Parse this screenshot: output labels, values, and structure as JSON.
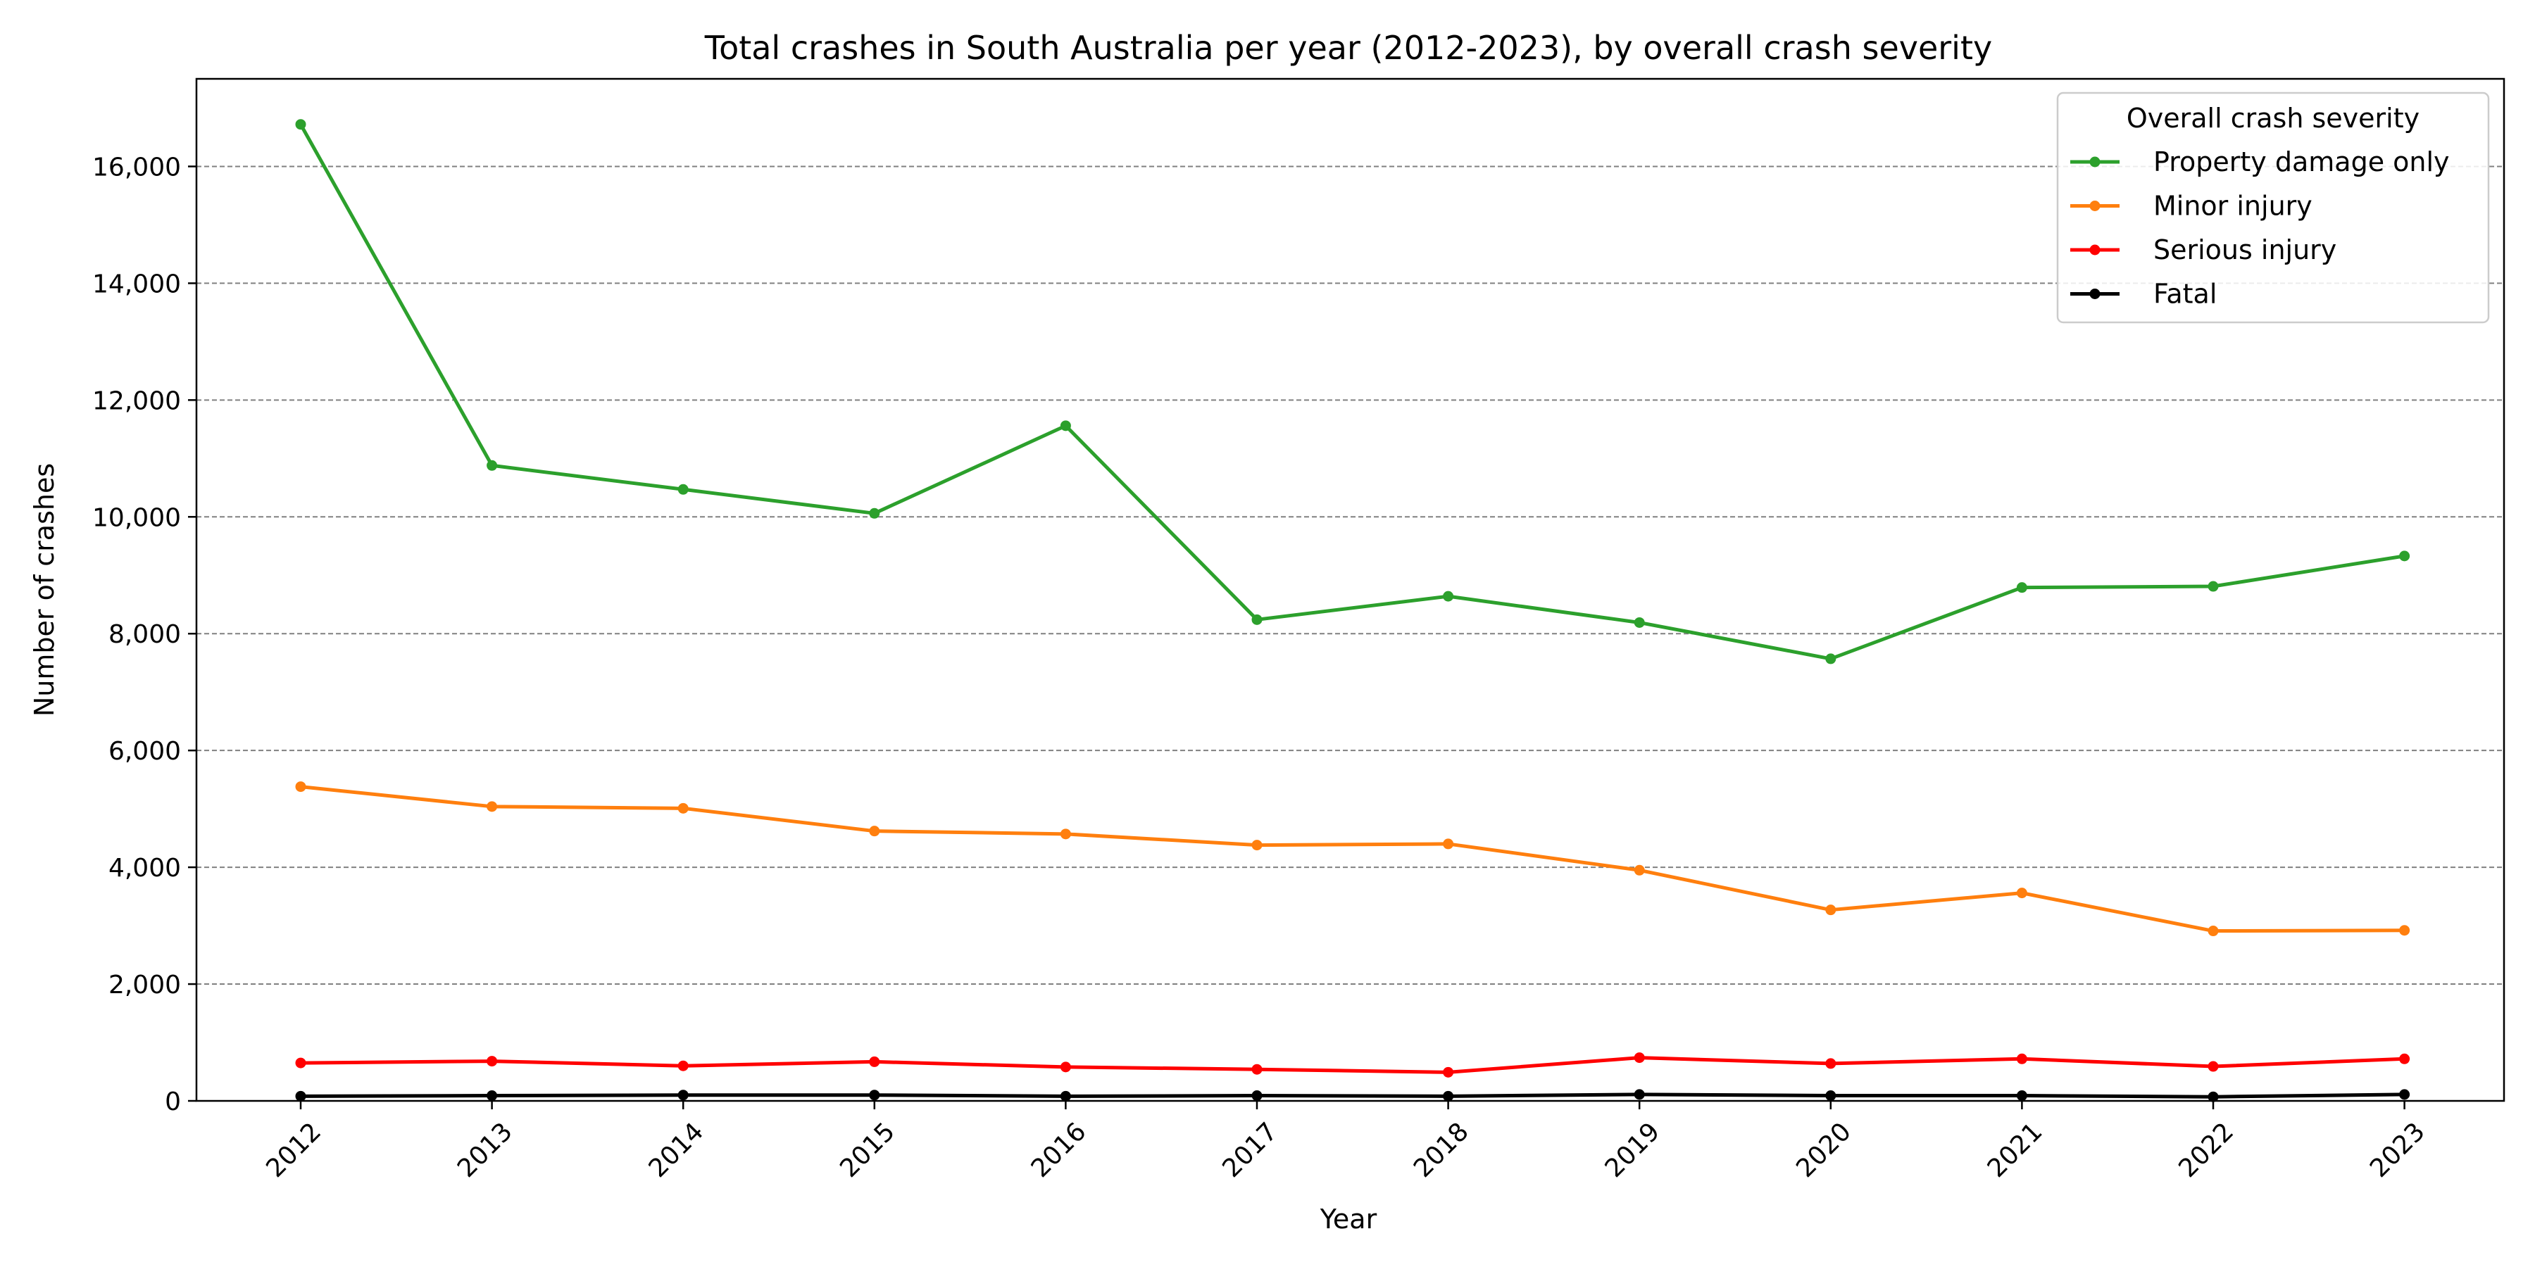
{
  "chart_data": {
    "type": "line",
    "title": "Total crashes in South Australia per year (2012-2023), by overall crash severity",
    "xlabel": "Year",
    "ylabel": "Number of crashes",
    "categories": [
      "2012",
      "2013",
      "2014",
      "2015",
      "2016",
      "2017",
      "2018",
      "2019",
      "2020",
      "2021",
      "2022",
      "2023"
    ],
    "ylim": [
      0,
      17500
    ],
    "yticks": [
      0,
      2000,
      4000,
      6000,
      8000,
      10000,
      12000,
      14000,
      16000
    ],
    "ytick_labels": [
      "0",
      "2,000",
      "4,000",
      "6,000",
      "8,000",
      "10,000",
      "12,000",
      "14,000",
      "16,000"
    ],
    "grid": "horizontal dashed",
    "legend": {
      "title": "Overall crash severity",
      "placement": "top-right"
    },
    "series": [
      {
        "name": "Property damage only",
        "color": "#2ca02c",
        "values": [
          16720,
          10880,
          10470,
          10060,
          11560,
          8240,
          8640,
          8190,
          7570,
          8790,
          8810,
          9330
        ]
      },
      {
        "name": "Minor injury",
        "color": "#ff7f0e",
        "values": [
          5380,
          5040,
          5010,
          4620,
          4570,
          4380,
          4400,
          3950,
          3270,
          3560,
          2910,
          2920
        ]
      },
      {
        "name": "Serious injury",
        "color": "#ff0000",
        "values": [
          650,
          680,
          600,
          670,
          580,
          540,
          490,
          740,
          640,
          720,
          590,
          720
        ]
      },
      {
        "name": "Fatal",
        "color": "#000000",
        "values": [
          80,
          90,
          100,
          100,
          80,
          90,
          80,
          110,
          90,
          90,
          70,
          110
        ]
      }
    ]
  }
}
